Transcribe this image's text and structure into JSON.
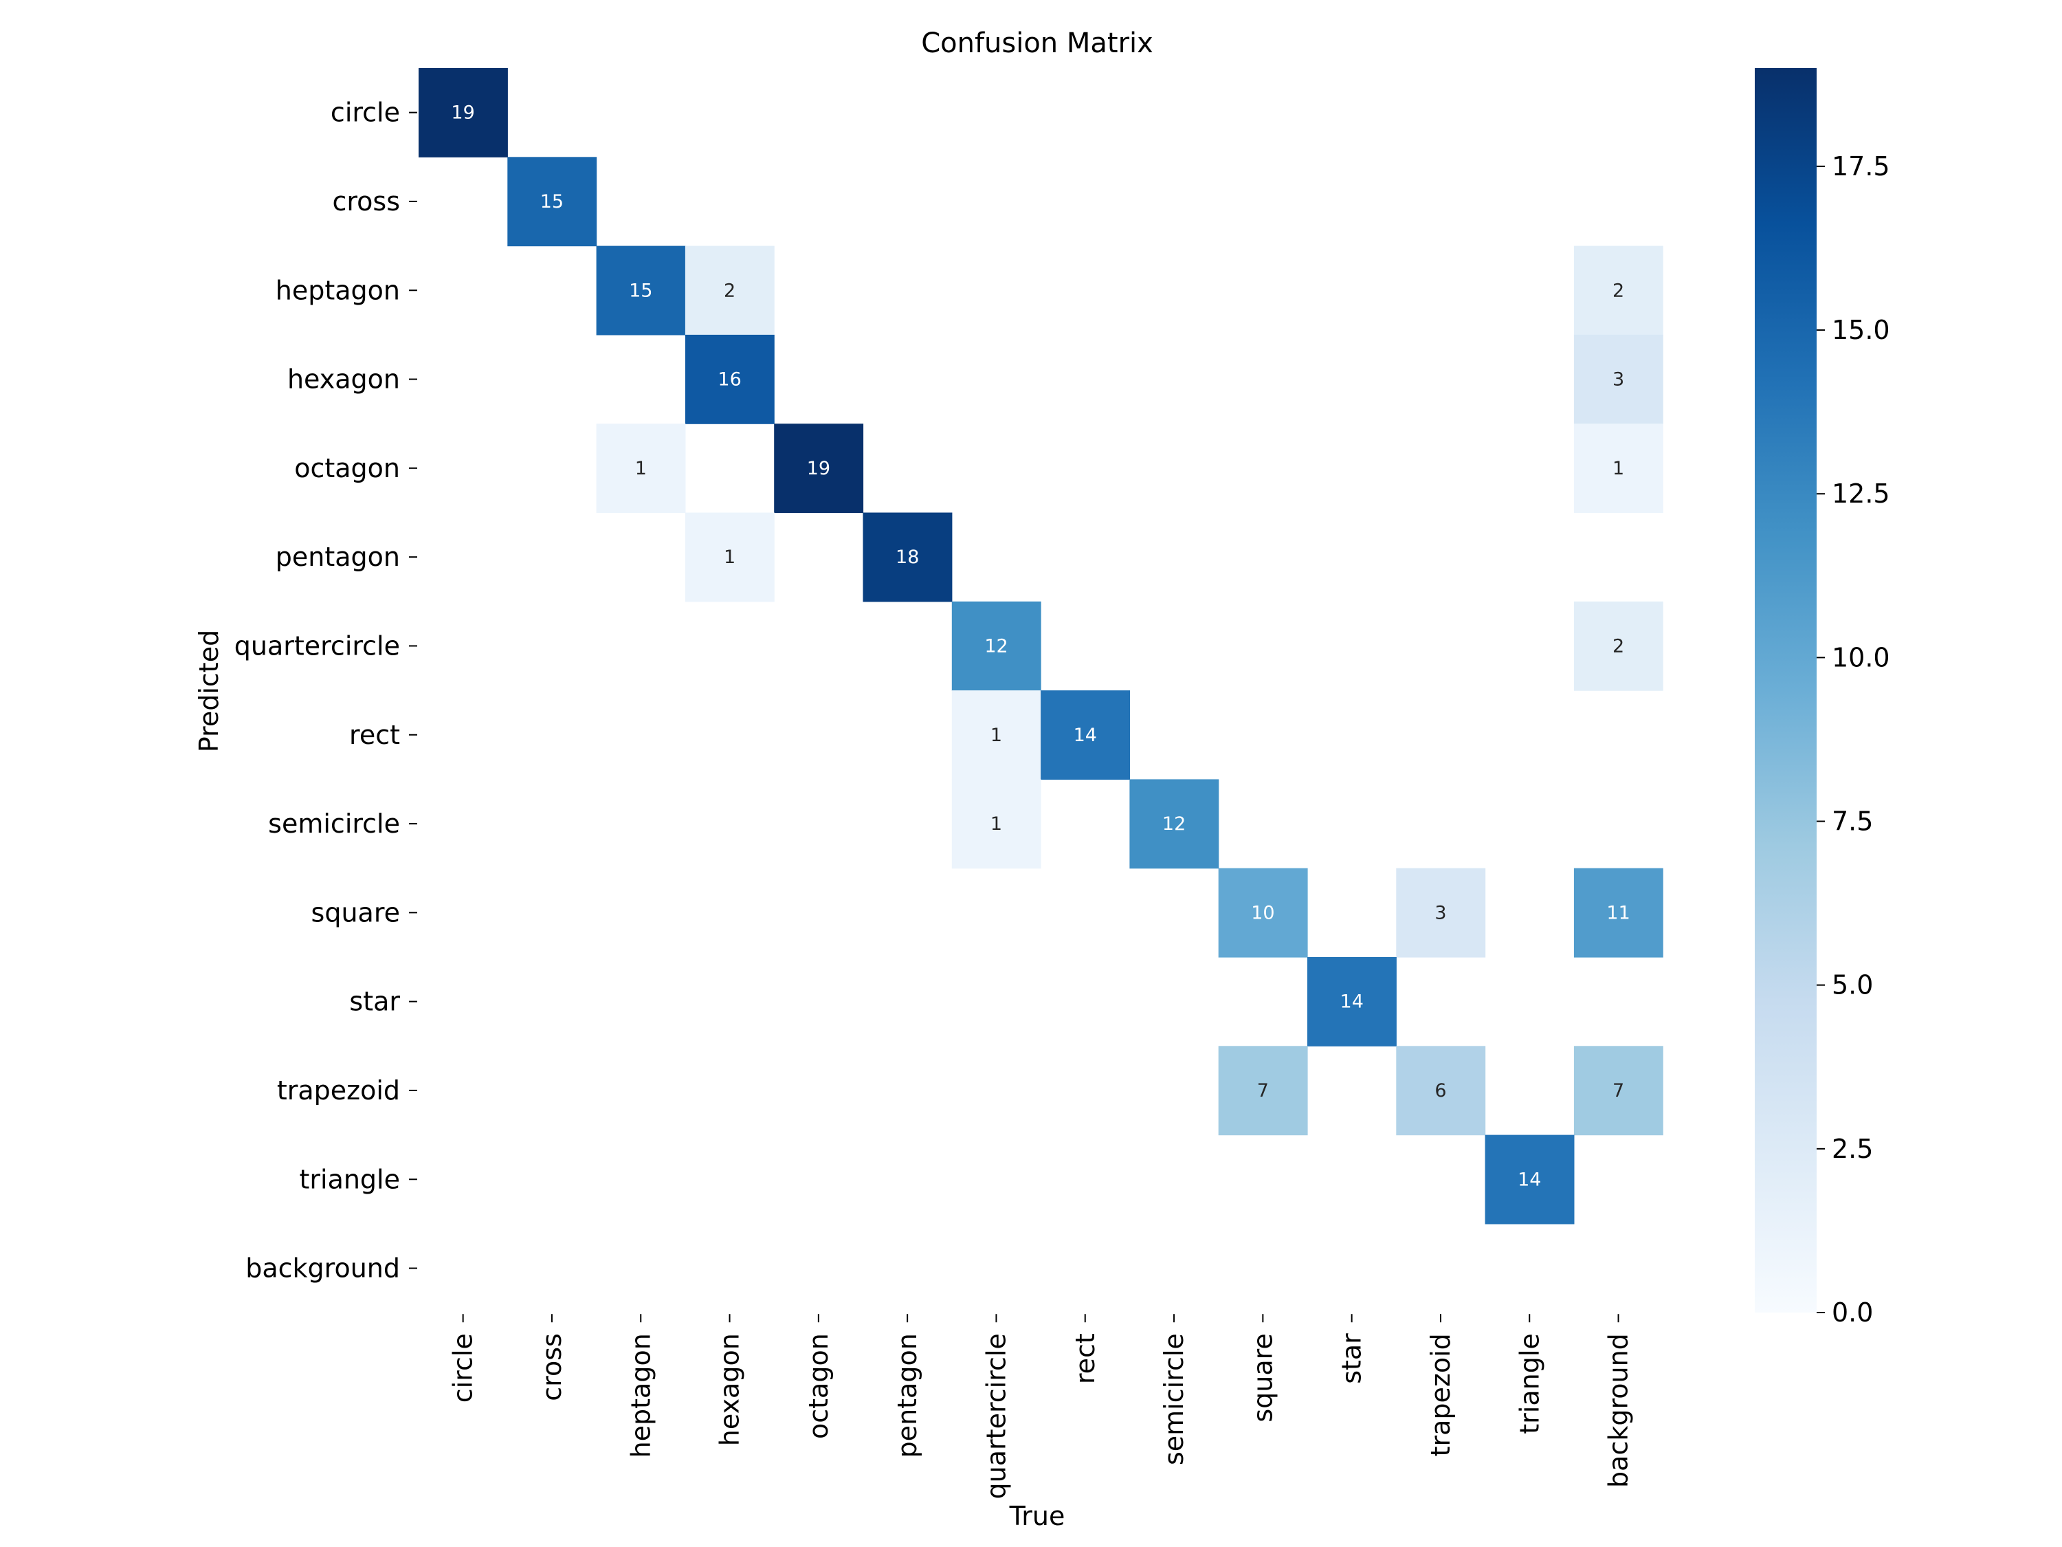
{
  "chart_data": {
    "type": "heatmap",
    "title": "Confusion Matrix",
    "xlabel": "True",
    "ylabel": "Predicted",
    "x_categories": [
      "circle",
      "cross",
      "heptagon",
      "hexagon",
      "octagon",
      "pentagon",
      "quartercircle",
      "rect",
      "semicircle",
      "square",
      "star",
      "trapezoid",
      "triangle",
      "background"
    ],
    "y_categories": [
      "circle",
      "cross",
      "heptagon",
      "hexagon",
      "octagon",
      "pentagon",
      "quartercircle",
      "rect",
      "semicircle",
      "square",
      "star",
      "trapezoid",
      "triangle",
      "background"
    ],
    "values": [
      [
        19,
        0,
        0,
        0,
        0,
        0,
        0,
        0,
        0,
        0,
        0,
        0,
        0,
        0
      ],
      [
        0,
        15,
        0,
        0,
        0,
        0,
        0,
        0,
        0,
        0,
        0,
        0,
        0,
        0
      ],
      [
        0,
        0,
        15,
        2,
        0,
        0,
        0,
        0,
        0,
        0,
        0,
        0,
        0,
        2
      ],
      [
        0,
        0,
        0,
        16,
        0,
        0,
        0,
        0,
        0,
        0,
        0,
        0,
        0,
        3
      ],
      [
        0,
        0,
        1,
        0,
        19,
        0,
        0,
        0,
        0,
        0,
        0,
        0,
        0,
        1
      ],
      [
        0,
        0,
        0,
        1,
        0,
        18,
        0,
        0,
        0,
        0,
        0,
        0,
        0,
        0
      ],
      [
        0,
        0,
        0,
        0,
        0,
        0,
        12,
        0,
        0,
        0,
        0,
        0,
        0,
        2
      ],
      [
        0,
        0,
        0,
        0,
        0,
        0,
        1,
        14,
        0,
        0,
        0,
        0,
        0,
        0
      ],
      [
        0,
        0,
        0,
        0,
        0,
        0,
        1,
        0,
        12,
        0,
        0,
        0,
        0,
        0
      ],
      [
        0,
        0,
        0,
        0,
        0,
        0,
        0,
        0,
        0,
        10,
        0,
        3,
        0,
        11
      ],
      [
        0,
        0,
        0,
        0,
        0,
        0,
        0,
        0,
        0,
        0,
        14,
        0,
        0,
        0
      ],
      [
        0,
        0,
        0,
        0,
        0,
        0,
        0,
        0,
        0,
        7,
        0,
        6,
        0,
        7
      ],
      [
        0,
        0,
        0,
        0,
        0,
        0,
        0,
        0,
        0,
        0,
        0,
        0,
        14,
        0
      ],
      [
        0,
        0,
        0,
        0,
        0,
        0,
        0,
        0,
        0,
        0,
        0,
        0,
        0,
        0
      ]
    ],
    "zero_cells_blank": true,
    "colormap": "Blues",
    "vmin": 0,
    "vmax": 19,
    "colorbar_ticks": [
      "0.0",
      "2.5",
      "5.0",
      "7.5",
      "10.0",
      "12.5",
      "15.0",
      "17.5"
    ],
    "colorbar_tick_values": [
      0,
      2.5,
      5,
      7.5,
      10,
      12.5,
      15,
      17.5
    ],
    "grid": false,
    "colors": {
      "low": "#f7fbff",
      "high": "#08306b",
      "text_dark": "#262626",
      "text_light": "#ffffff"
    }
  }
}
